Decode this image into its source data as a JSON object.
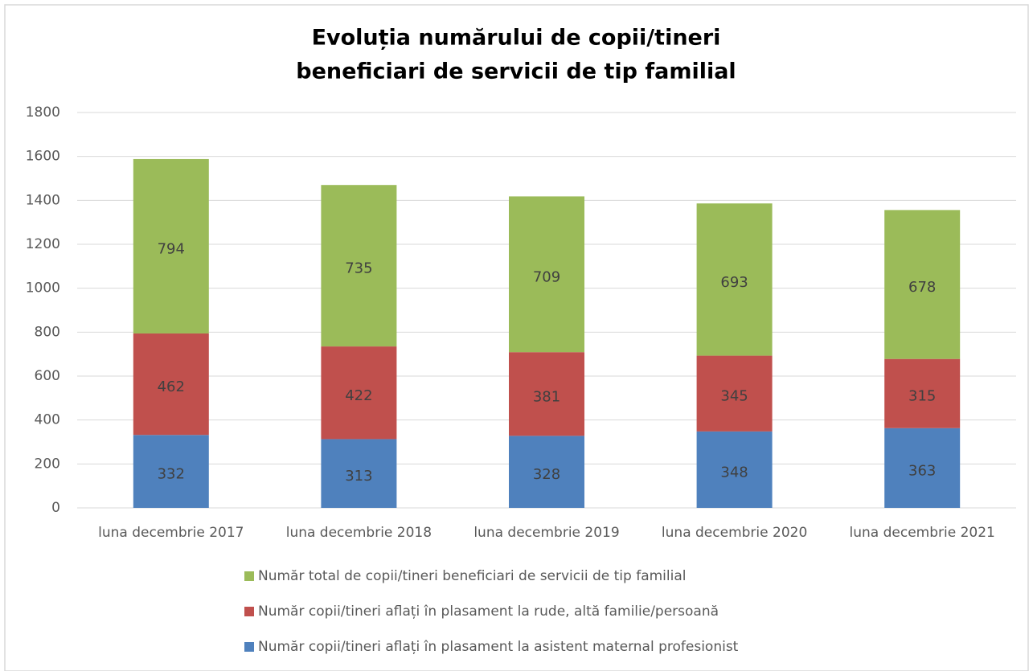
{
  "chart_data": {
    "type": "stacked_bar",
    "title": [
      "Evoluția numărului de copii/tineri",
      "beneficiari de servicii de tip familial"
    ],
    "categories": [
      "luna decembrie 2017",
      "luna decembrie 2018",
      "luna decembrie 2019",
      "luna decembrie 2020",
      "luna decembrie 2021"
    ],
    "series": [
      {
        "name": "Număr copii/tineri aflați în plasament la asistent maternal profesionist",
        "color": "#4f81bd",
        "values": [
          332,
          313,
          328,
          348,
          363
        ]
      },
      {
        "name": "Număr copii/tineri aflați în plasament la rude, altă familie/persoană",
        "color": "#c0504d",
        "values": [
          462,
          422,
          381,
          345,
          315
        ]
      },
      {
        "name": "Număr total de copii/tineri beneficiari de servicii de tip familial",
        "color": "#9bbb59",
        "values": [
          794,
          735,
          709,
          693,
          678
        ]
      }
    ],
    "ylim": [
      0,
      1800
    ],
    "yticks": [
      0,
      200,
      400,
      600,
      800,
      1000,
      1200,
      1400,
      1600,
      1800
    ],
    "grid": true,
    "legend": "bottom"
  }
}
